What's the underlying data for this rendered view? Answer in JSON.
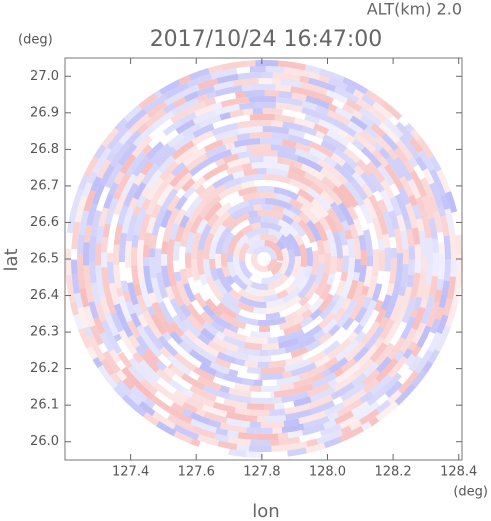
{
  "chart_data": {
    "type": "ppi",
    "title": "2017/10/24 16:47:00",
    "annotation": "ALT(km) 2.0",
    "x_label": "lon",
    "x_unit": "(deg)",
    "y_label": "lat",
    "y_unit": "(deg)",
    "xlim": [
      127.2,
      128.41
    ],
    "ylim": [
      25.95,
      27.05
    ],
    "xticks": [
      127.4,
      127.6,
      127.8,
      {
        "value": 128.0,
        "label": "128.0"
      },
      128.2,
      128.4
    ],
    "yticks": [
      {
        "value": 26.0,
        "label": "26.0"
      },
      26.1,
      26.2,
      26.3,
      26.4,
      26.5,
      26.6,
      26.7,
      26.8,
      26.9,
      {
        "value": 27.0,
        "label": "27.0"
      }
    ]
  }
}
